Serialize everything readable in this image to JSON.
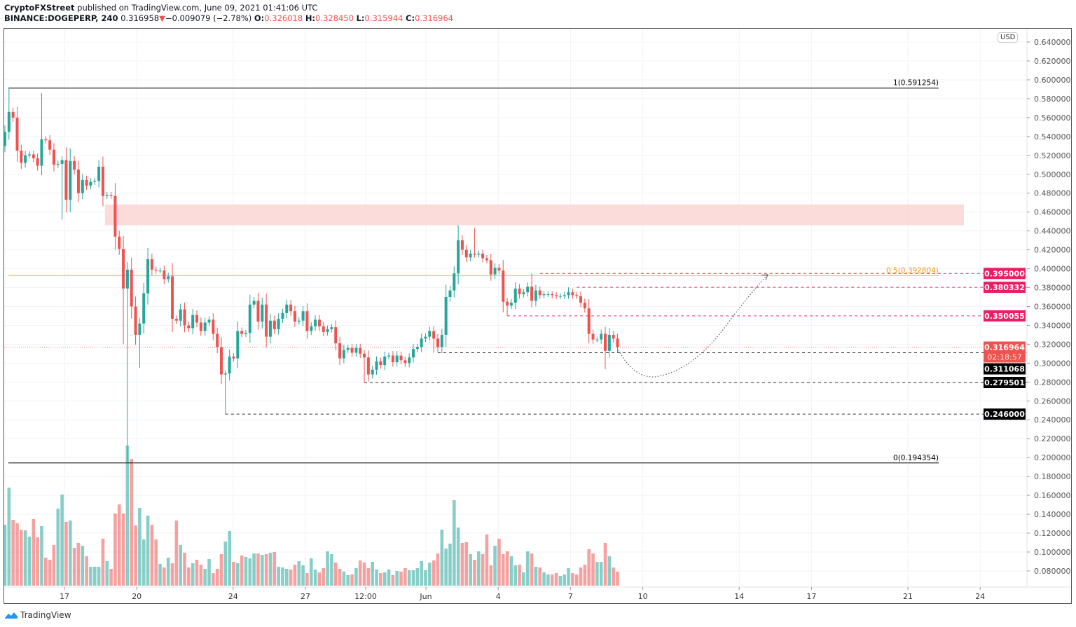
{
  "header": {
    "publisher": "CryptoFXStreet",
    "published_text": "published on TradingView.com, June 09, 2021 01:41:06 UTC",
    "symbol": "BINANCE:DOGEPERP, 240",
    "last": "0.316958",
    "change_arrow": "▼",
    "change": "−0.009079 (−2.78%)",
    "o_label": "O:",
    "o": "0.326018",
    "h_label": "H:",
    "h": "0.328450",
    "l_label": "L:",
    "l": "0.315944",
    "c_label": "C:",
    "c": "0.316964"
  },
  "currency_label": "USD",
  "footer": {
    "brand": "TradingView"
  },
  "colors": {
    "up": "#26a69a",
    "down": "#ef5350",
    "zone": "#fcd5d5",
    "fib_mid": "#ff9800",
    "resistance": "#e91e63",
    "support": "#000000"
  },
  "chart_data": {
    "type": "candlestick",
    "title": "BINANCE:DOGEPERP, 240",
    "interval": "4h",
    "ylim": [
      0.07,
      0.64
    ],
    "y_ticks": [
      "0.640000",
      "0.620000",
      "0.600000",
      "0.580000",
      "0.560000",
      "0.540000",
      "0.520000",
      "0.500000",
      "0.480000",
      "0.460000",
      "0.440000",
      "0.420000",
      "0.400000",
      "0.380000",
      "0.360000",
      "0.340000",
      "0.320000",
      "0.300000",
      "0.280000",
      "0.260000",
      "0.240000",
      "0.220000",
      "0.200000",
      "0.180000",
      "0.160000",
      "0.140000",
      "0.120000",
      "0.100000",
      "0.080000"
    ],
    "x_ticks": [
      {
        "label": "17",
        "day": 0
      },
      {
        "label": "20",
        "day": 3
      },
      {
        "label": "24",
        "day": 7
      },
      {
        "label": "27",
        "day": 10
      },
      {
        "label": "12:00",
        "day": 12.5
      },
      {
        "label": "Jun",
        "day": 15
      },
      {
        "label": "4",
        "day": 18
      },
      {
        "label": "7",
        "day": 21
      },
      {
        "label": "10",
        "day": 24
      },
      {
        "label": "14",
        "day": 28
      },
      {
        "label": "17",
        "day": 31
      },
      {
        "label": "21",
        "day": 35
      },
      {
        "label": "24",
        "day": 38
      }
    ],
    "closes": [
      0.545,
      0.566,
      0.56,
      0.525,
      0.512,
      0.52,
      0.521,
      0.517,
      0.509,
      0.537,
      0.536,
      0.526,
      0.51,
      0.511,
      0.515,
      0.473,
      0.514,
      0.505,
      0.48,
      0.494,
      0.488,
      0.492,
      0.493,
      0.508,
      0.477,
      0.478,
      0.477,
      0.434,
      0.421,
      0.379,
      0.399,
      0.36,
      0.33,
      0.342,
      0.374,
      0.41,
      0.399,
      0.398,
      0.398,
      0.389,
      0.392,
      0.347,
      0.345,
      0.357,
      0.34,
      0.337,
      0.351,
      0.343,
      0.334,
      0.343,
      0.346,
      0.331,
      0.317,
      0.288,
      0.289,
      0.307,
      0.305,
      0.334,
      0.331,
      0.332,
      0.362,
      0.366,
      0.344,
      0.362,
      0.328,
      0.345,
      0.336,
      0.347,
      0.353,
      0.362,
      0.355,
      0.344,
      0.345,
      0.355,
      0.334,
      0.339,
      0.346,
      0.339,
      0.333,
      0.336,
      0.338,
      0.321,
      0.305,
      0.314,
      0.316,
      0.311,
      0.316,
      0.31,
      0.306,
      0.288,
      0.293,
      0.302,
      0.298,
      0.307,
      0.308,
      0.301,
      0.308,
      0.303,
      0.3,
      0.306,
      0.315,
      0.317,
      0.326,
      0.328,
      0.334,
      0.326,
      0.317,
      0.33,
      0.37,
      0.377,
      0.395,
      0.43,
      0.42,
      0.412,
      0.416,
      0.415,
      0.416,
      0.411,
      0.409,
      0.394,
      0.401,
      0.398,
      0.365,
      0.361,
      0.364,
      0.379,
      0.373,
      0.375,
      0.381,
      0.366,
      0.377,
      0.372,
      0.373,
      0.373,
      0.372,
      0.371,
      0.371,
      0.372,
      0.375,
      0.372,
      0.371,
      0.364,
      0.358,
      0.331,
      0.325,
      0.325,
      0.331,
      0.313,
      0.33,
      0.326,
      0.317
    ],
    "first_open": 0.53,
    "extremes": [
      {
        "candle": 1,
        "high": 0.591254
      },
      {
        "candle": 9,
        "high": 0.586
      },
      {
        "candle": 14,
        "low": 0.452
      },
      {
        "candle": 29,
        "low": 0.32
      },
      {
        "candle": 30,
        "low": 0.194354
      },
      {
        "candle": 33,
        "low": 0.295
      },
      {
        "candle": 54,
        "low": 0.246
      },
      {
        "candle": 88,
        "low": 0.279501
      },
      {
        "candle": 105,
        "low": 0.311068
      },
      {
        "candle": 111,
        "high": 0.446
      },
      {
        "candle": 115,
        "high": 0.443
      },
      {
        "candle": 123,
        "low": 0.350055
      },
      {
        "candle": 129,
        "high": 0.395
      },
      {
        "candle": 138,
        "high": 0.380332
      },
      {
        "candle": 147,
        "low": 0.2935
      }
    ],
    "volume_relative": [
      87,
      140,
      94,
      89,
      80,
      79,
      70,
      95,
      69,
      85,
      40,
      37,
      58,
      110,
      130,
      91,
      93,
      54,
      61,
      57,
      42,
      27,
      27,
      27,
      67,
      35,
      24,
      103,
      116,
      103,
      200,
      181,
      86,
      111,
      66,
      100,
      87,
      66,
      31,
      26,
      40,
      32,
      93,
      58,
      47,
      26,
      32,
      37,
      30,
      24,
      38,
      18,
      24,
      45,
      63,
      78,
      34,
      32,
      43,
      41,
      39,
      46,
      46,
      44,
      45,
      47,
      48,
      27,
      26,
      24,
      23,
      30,
      35,
      29,
      18,
      39,
      23,
      19,
      25,
      49,
      45,
      33,
      24,
      20,
      15,
      16,
      25,
      36,
      33,
      25,
      34,
      23,
      18,
      19,
      23,
      15,
      21,
      20,
      25,
      22,
      22,
      25,
      35,
      22,
      33,
      36,
      46,
      80,
      53,
      60,
      122,
      83,
      61,
      62,
      45,
      37,
      49,
      45,
      73,
      29,
      57,
      67,
      45,
      49,
      42,
      29,
      30,
      19,
      49,
      46,
      27,
      26,
      19,
      16,
      16,
      18,
      14,
      16,
      25,
      18,
      16,
      26,
      30,
      52,
      46,
      34,
      34,
      61,
      42,
      26,
      20
    ],
    "supply_zone": {
      "low": 0.446,
      "high": 0.468,
      "from_candle": 25
    },
    "fib_levels": [
      {
        "label": "1(0.591254)",
        "price": 0.591254,
        "color": "#000000"
      },
      {
        "label": "0.5(0.392804)",
        "price": 0.392804,
        "color": "#ff9800"
      },
      {
        "label": "0(0.194354)",
        "price": 0.194354,
        "color": "#000000"
      }
    ],
    "levels": [
      {
        "price": 0.395,
        "label": "0.395000",
        "style": "resistance",
        "from_candle": 131
      },
      {
        "price": 0.380332,
        "label": "0.380332",
        "style": "resistance",
        "from_candle": 140
      },
      {
        "price": 0.350055,
        "label": "0.350055",
        "style": "resistance",
        "from_candle": 123
      },
      {
        "price": 0.311068,
        "label": "0.311068",
        "style": "support",
        "from_candle": 106
      },
      {
        "price": 0.279501,
        "label": "0.279501",
        "style": "support",
        "from_candle": 88
      },
      {
        "price": 0.246,
        "label": "0.246000",
        "style": "support",
        "from_candle": 54
      }
    ],
    "last_price": {
      "price": 0.316964,
      "label": "0.316964",
      "countdown": "02:18:57"
    }
  }
}
